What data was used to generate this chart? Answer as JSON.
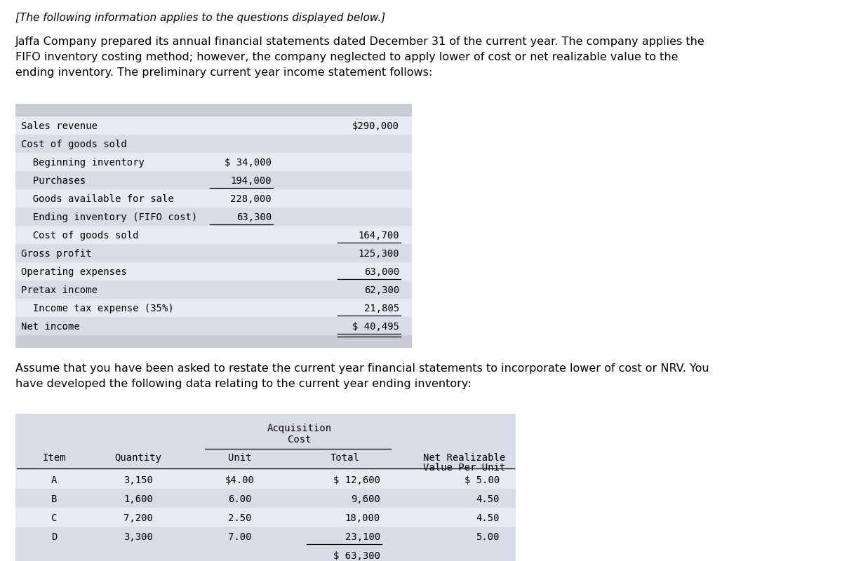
{
  "intro_italic": "[The following information applies to the questions displayed below.]",
  "paragraph1": "Jaffa Company prepared its annual financial statements dated December 31 of the current year. The company applies the\nFIFO inventory costing method; however, the company neglected to apply lower of cost or net realizable value to the\nending inventory. The preliminary current year income statement follows:",
  "paragraph2": "Assume that you have been asked to restate the current year financial statements to incorporate lower of cost or NRV. You\nhave developed the following data relating to the current year ending inventory:",
  "bg_color": "#ffffff",
  "table_bg_light": "#d9dce6",
  "table_bg_dark": "#c8ccd6",
  "table_row_white": "#e8eaf2",
  "income_statement": [
    {
      "label": "Sales revenue",
      "col1": "",
      "col2": "$290,000",
      "indent": 0,
      "ul1": false,
      "ul2": false,
      "dbl": false
    },
    {
      "label": "Cost of goods sold",
      "col1": "",
      "col2": "",
      "indent": 0,
      "ul1": false,
      "ul2": false,
      "dbl": false
    },
    {
      "label": "  Beginning inventory",
      "col1": "$ 34,000",
      "col2": "",
      "indent": 1,
      "ul1": false,
      "ul2": false,
      "dbl": false
    },
    {
      "label": "  Purchases",
      "col1": "194,000",
      "col2": "",
      "indent": 1,
      "ul1": true,
      "ul2": false,
      "dbl": false
    },
    {
      "label": "  Goods available for sale",
      "col1": "228,000",
      "col2": "",
      "indent": 1,
      "ul1": false,
      "ul2": false,
      "dbl": false
    },
    {
      "label": "  Ending inventory (FIFO cost)",
      "col1": "63,300",
      "col2": "",
      "indent": 1,
      "ul1": true,
      "ul2": false,
      "dbl": false
    },
    {
      "label": "  Cost of goods sold",
      "col1": "",
      "col2": "164,700",
      "indent": 1,
      "ul1": false,
      "ul2": true,
      "dbl": false
    },
    {
      "label": "Gross profit",
      "col1": "",
      "col2": "125,300",
      "indent": 0,
      "ul1": false,
      "ul2": false,
      "dbl": false
    },
    {
      "label": "Operating expenses",
      "col1": "",
      "col2": "63,000",
      "indent": 0,
      "ul1": false,
      "ul2": true,
      "dbl": false
    },
    {
      "label": "Pretax income",
      "col1": "",
      "col2": "62,300",
      "indent": 0,
      "ul1": false,
      "ul2": false,
      "dbl": false
    },
    {
      "label": "  Income tax expense (35%)",
      "col1": "",
      "col2": "21,805",
      "indent": 1,
      "ul1": false,
      "ul2": true,
      "dbl": false
    },
    {
      "label": "Net income",
      "col1": "",
      "col2": "$ 40,495",
      "indent": 0,
      "ul1": false,
      "ul2": false,
      "dbl": true
    }
  ],
  "inventory_items": [
    {
      "item": "A",
      "quantity": "3,150",
      "unit": "$4.00",
      "total": "$ 12,600",
      "nrv": "$ 5.00"
    },
    {
      "item": "B",
      "quantity": "1,600",
      "unit": "6.00",
      "total": "9,600",
      "nrv": "4.50"
    },
    {
      "item": "C",
      "quantity": "7,200",
      "unit": "2.50",
      "total": "18,000",
      "nrv": "4.50"
    },
    {
      "item": "D",
      "quantity": "3,300",
      "unit": "7.00",
      "total": "23,100",
      "nrv": "5.00"
    }
  ],
  "inventory_total": "$ 63,300",
  "mono_font": "DejaVu Sans Mono",
  "serif_font": "DejaVu Sans"
}
